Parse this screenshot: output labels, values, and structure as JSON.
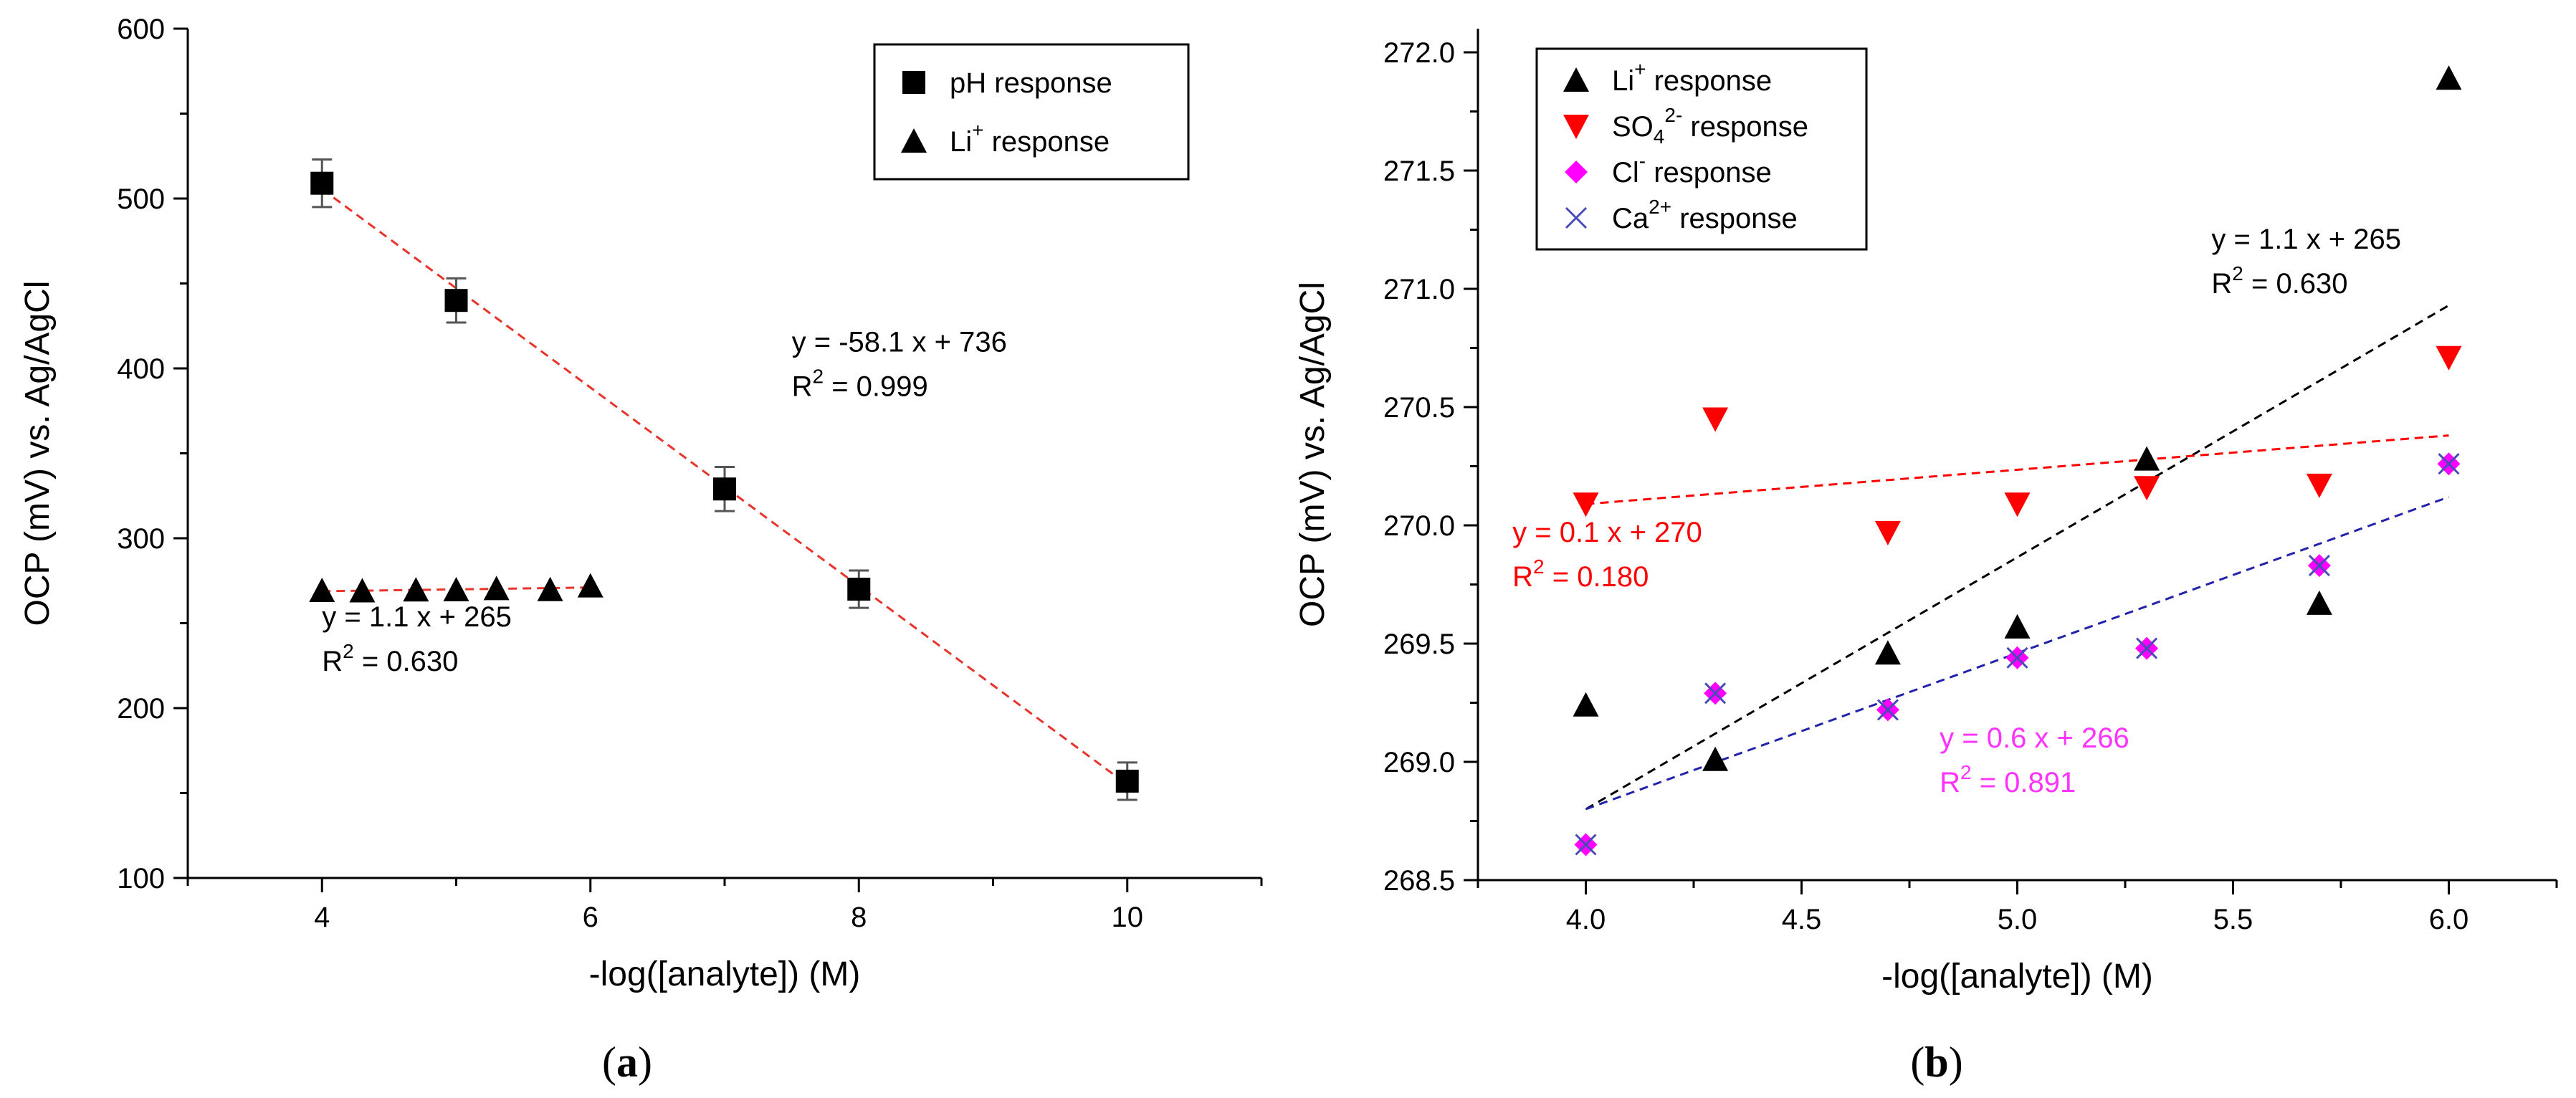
{
  "chart_data": [
    {
      "type": "scatter",
      "panel": "a",
      "panel_label": "a",
      "xlabel": "-log([analyte]) (M)",
      "ylabel": "OCP (mV) vs. Ag/AgCl",
      "xlim": [
        3,
        11
      ],
      "ylim": [
        100,
        600
      ],
      "xticks": [
        4,
        6,
        8,
        10
      ],
      "yticks": [
        100,
        200,
        300,
        400,
        500,
        600
      ],
      "legend_position": "top-right",
      "series": [
        {
          "name": "pH response",
          "legend_label": "pH response",
          "marker": "square",
          "color": "#000000",
          "x": [
            4,
            5,
            7,
            8,
            10
          ],
          "y": [
            509,
            440,
            329,
            270,
            157
          ],
          "yerr": [
            14,
            13,
            13,
            11,
            11
          ],
          "fit": {
            "x": [
              4,
              10
            ],
            "y": [
              505.6,
              155
            ],
            "color": "#e8332a",
            "style": "dashed"
          }
        },
        {
          "name": "Li+ response",
          "legend_label": "Li",
          "legend_sup": "+",
          "legend_suffix": " response",
          "marker": "triangle",
          "color": "#000000",
          "x": [
            4,
            4.3,
            4.7,
            5,
            5.3,
            5.7,
            6
          ],
          "y": [
            269.2,
            269.0,
            269.5,
            269.6,
            270.3,
            269.7,
            271.9
          ],
          "fit": {
            "x": [
              4,
              6
            ],
            "y": [
              268.8,
              271
            ],
            "color": "#e8332a",
            "style": "dashed"
          }
        }
      ],
      "annotations": [
        {
          "line1": "y = -58.1 x + 736",
          "r_prefix": "R",
          "r_sup": "2",
          "r_rest": " = 0.999",
          "color": "#000000",
          "x": 7.5,
          "y": 410
        },
        {
          "line1": "y = 1.1 x + 265",
          "r_prefix": "R",
          "r_sup": "2",
          "r_rest": " = 0.630",
          "color": "#000000",
          "x": 4.0,
          "y": 248
        }
      ]
    },
    {
      "type": "scatter",
      "panel": "b",
      "panel_label": "b",
      "xlabel": "-log([analyte]) (M)",
      "ylabel": "OCP (mV) vs. Ag/AgCl",
      "xlim": [
        3.75,
        6.25
      ],
      "ylim": [
        268.5,
        272.1
      ],
      "xticks": [
        4.0,
        4.5,
        5.0,
        5.5,
        6.0
      ],
      "yticks": [
        268.5,
        269.0,
        269.5,
        270.0,
        270.5,
        271.0,
        271.5,
        272.0
      ],
      "legend_position": "top-left",
      "series": [
        {
          "name": "Li+ response",
          "legend_label": "Li",
          "legend_sup": "+",
          "legend_suffix": " response",
          "marker": "triangle",
          "color": "#000000",
          "x": [
            4.0,
            4.3,
            4.7,
            5.0,
            5.3,
            5.7,
            6.0
          ],
          "y": [
            269.24,
            269.01,
            269.46,
            269.57,
            270.28,
            269.67,
            271.89
          ],
          "fit": {
            "x": [
              4.0,
              6.0
            ],
            "y": [
              268.8,
              270.93
            ],
            "color": "#000000",
            "style": "dashed"
          }
        },
        {
          "name": "SO42- response",
          "legend_label": "SO",
          "legend_sub": "4",
          "legend_sup": "2-",
          "legend_suffix": " response",
          "marker": "triangle-down",
          "color": "#ff0000",
          "x": [
            4.0,
            4.3,
            4.7,
            5.0,
            5.3,
            5.7,
            6.0
          ],
          "y": [
            270.09,
            270.45,
            269.97,
            270.09,
            270.16,
            270.17,
            270.71
          ],
          "fit": {
            "x": [
              4.0,
              6.0
            ],
            "y": [
              270.09,
              270.38
            ],
            "color": "#ff0000",
            "style": "dashed"
          }
        },
        {
          "name": "Cl- response",
          "legend_label": "Cl",
          "legend_sup": "-",
          "legend_suffix": " response",
          "marker": "diamond",
          "color": "#ff00ff",
          "x": [
            4.0,
            4.3,
            4.7,
            5.0,
            5.3,
            5.7,
            6.0
          ],
          "y": [
            268.65,
            269.29,
            269.22,
            269.44,
            269.48,
            269.83,
            270.26
          ],
          "fit": {
            "x": [
              4.0,
              6.0
            ],
            "y": [
              268.8,
              270.12
            ],
            "color": "#2222aa",
            "style": "dashed"
          }
        },
        {
          "name": "Ca2+ response",
          "legend_label": "Ca",
          "legend_sup": "2+",
          "legend_suffix": " response",
          "marker": "x",
          "color": "#4a4ab8",
          "x": [
            4.0,
            4.3,
            4.7,
            5.0,
            5.3,
            5.7,
            6.0
          ],
          "y": [
            268.65,
            269.29,
            269.22,
            269.44,
            269.48,
            269.83,
            270.26
          ]
        }
      ],
      "annotations": [
        {
          "line1": "y = 1.1 x + 265",
          "r_prefix": "R",
          "r_sup": "2",
          "r_rest": " = 0.630",
          "color": "#000000",
          "x": 5.45,
          "y": 271.17
        },
        {
          "line1": "y = 0.1 x + 270",
          "r_prefix": "R",
          "r_sup": "2",
          "r_rest": " = 0.180",
          "color": "#ff0000",
          "x": 3.83,
          "y": 269.93
        },
        {
          "line1": "y = 0.6 x + 266",
          "r_prefix": "R",
          "r_sup": "2",
          "r_rest": " = 0.891",
          "color": "#ff33ff",
          "x": 4.82,
          "y": 269.06
        }
      ]
    }
  ]
}
